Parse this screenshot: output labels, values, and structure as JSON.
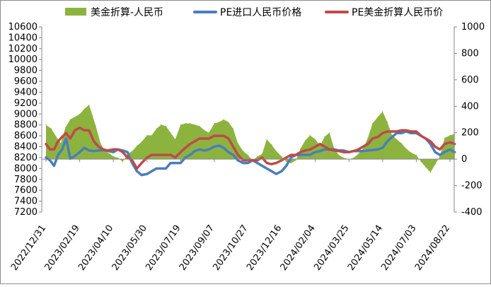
{
  "chart_data": {
    "type": "area+line",
    "title": "",
    "xlabel": "",
    "ylabel": "",
    "ylim_left": [
      7200,
      10600
    ],
    "ylim_right": [
      -400,
      1000
    ],
    "left_ticks": [
      "10600",
      "10400",
      "10200",
      "10000",
      "9800",
      "9600",
      "9400",
      "9200",
      "9000",
      "8800",
      "8600",
      "8400",
      "8200",
      "8000",
      "7800",
      "7600",
      "7400",
      "7200"
    ],
    "right_ticks": [
      "1000",
      "800",
      "600",
      "400",
      "200",
      "0",
      "-200",
      "-400"
    ],
    "x_ticks": [
      "2022/12/31",
      "2023/02/19",
      "2023/04/10",
      "2023/05/30",
      "2023/07/19",
      "2023/09/07",
      "2023/10/27",
      "2023/12/16",
      "2024/02/04",
      "2024/03/25",
      "2024/05/14",
      "2024/07/03",
      "2024/08/22"
    ],
    "legend_position": "top",
    "grid": false,
    "series": [
      {
        "name": "美金折算-人民币",
        "kind": "area",
        "axis": "right",
        "color": "#8DB33F",
        "points": [
          [
            "2022/12/31",
            260
          ],
          [
            "2023/01/08",
            230
          ],
          [
            "2023/01/15",
            170
          ],
          [
            "2023/01/22",
            120
          ],
          [
            "2023/01/29",
            240
          ],
          [
            "2023/02/05",
            300
          ],
          [
            "2023/02/12",
            320
          ],
          [
            "2023/02/19",
            340
          ],
          [
            "2023/02/26",
            380
          ],
          [
            "2023/03/05",
            410
          ],
          [
            "2023/03/10",
            330
          ],
          [
            "2023/03/15",
            250
          ],
          [
            "2023/03/22",
            120
          ],
          [
            "2023/03/29",
            60
          ],
          [
            "2023/04/05",
            40
          ],
          [
            "2023/04/10",
            20
          ],
          [
            "2023/04/17",
            10
          ],
          [
            "2023/04/24",
            -20
          ],
          [
            "2023/05/01",
            40
          ],
          [
            "2023/05/08",
            60
          ],
          [
            "2023/05/15",
            100
          ],
          [
            "2023/05/22",
            130
          ],
          [
            "2023/05/30",
            180
          ],
          [
            "2023/06/06",
            180
          ],
          [
            "2023/06/13",
            230
          ],
          [
            "2023/06/20",
            260
          ],
          [
            "2023/06/27",
            250
          ],
          [
            "2023/07/04",
            200
          ],
          [
            "2023/07/11",
            150
          ],
          [
            "2023/07/19",
            260
          ],
          [
            "2023/07/26",
            270
          ],
          [
            "2023/08/02",
            270
          ],
          [
            "2023/08/09",
            260
          ],
          [
            "2023/08/16",
            250
          ],
          [
            "2023/08/23",
            220
          ],
          [
            "2023/08/30",
            200
          ],
          [
            "2023/09/07",
            270
          ],
          [
            "2023/09/14",
            280
          ],
          [
            "2023/09/21",
            300
          ],
          [
            "2023/09/28",
            280
          ],
          [
            "2023/10/05",
            230
          ],
          [
            "2023/10/12",
            120
          ],
          [
            "2023/10/20",
            60
          ],
          [
            "2023/10/27",
            30
          ],
          [
            "2023/11/03",
            -10
          ],
          [
            "2023/11/10",
            20
          ],
          [
            "2023/11/17",
            40
          ],
          [
            "2023/11/24",
            150
          ],
          [
            "2023/12/01",
            110
          ],
          [
            "2023/12/08",
            60
          ],
          [
            "2023/12/16",
            20
          ],
          [
            "2023/12/23",
            -20
          ],
          [
            "2023/12/30",
            -30
          ],
          [
            "2024/01/06",
            -10
          ],
          [
            "2024/01/13",
            80
          ],
          [
            "2024/01/20",
            140
          ],
          [
            "2024/01/27",
            180
          ],
          [
            "2024/02/04",
            150
          ],
          [
            "2024/02/11",
            100
          ],
          [
            "2024/02/18",
            170
          ],
          [
            "2024/02/25",
            200
          ],
          [
            "2024/03/03",
            80
          ],
          [
            "2024/03/10",
            30
          ],
          [
            "2024/03/17",
            10
          ],
          [
            "2024/03/25",
            0
          ],
          [
            "2024/04/01",
            10
          ],
          [
            "2024/04/08",
            40
          ],
          [
            "2024/04/15",
            80
          ],
          [
            "2024/04/22",
            160
          ],
          [
            "2024/04/29",
            270
          ],
          [
            "2024/05/07",
            320
          ],
          [
            "2024/05/14",
            360
          ],
          [
            "2024/05/21",
            280
          ],
          [
            "2024/05/28",
            180
          ],
          [
            "2024/06/04",
            150
          ],
          [
            "2024/06/11",
            120
          ],
          [
            "2024/06/18",
            80
          ],
          [
            "2024/06/25",
            50
          ],
          [
            "2024/07/03",
            30
          ],
          [
            "2024/07/10",
            -20
          ],
          [
            "2024/07/17",
            -60
          ],
          [
            "2024/07/24",
            -100
          ],
          [
            "2024/07/31",
            -40
          ],
          [
            "2024/08/07",
            20
          ],
          [
            "2024/08/14",
            160
          ],
          [
            "2024/08/22",
            180
          ],
          [
            "2024/08/29",
            190
          ]
        ]
      },
      {
        "name": "PE进口人民币价格",
        "kind": "line",
        "axis": "left",
        "color": "#4A7EBB",
        "points": [
          [
            "2022/12/31",
            8200
          ],
          [
            "2023/01/06",
            8150
          ],
          [
            "2023/01/12",
            8050
          ],
          [
            "2023/01/18",
            8250
          ],
          [
            "2023/01/24",
            8350
          ],
          [
            "2023/01/30",
            8550
          ],
          [
            "2023/02/05",
            8180
          ],
          [
            "2023/02/12",
            8230
          ],
          [
            "2023/02/19",
            8300
          ],
          [
            "2023/02/26",
            8380
          ],
          [
            "2023/03/05",
            8330
          ],
          [
            "2023/03/12",
            8320
          ],
          [
            "2023/03/19",
            8330
          ],
          [
            "2023/03/26",
            8340
          ],
          [
            "2023/04/02",
            8320
          ],
          [
            "2023/04/10",
            8300
          ],
          [
            "2023/04/17",
            8350
          ],
          [
            "2023/04/24",
            8330
          ],
          [
            "2023/05/01",
            8300
          ],
          [
            "2023/05/08",
            8100
          ],
          [
            "2023/05/15",
            7950
          ],
          [
            "2023/05/22",
            7880
          ],
          [
            "2023/05/30",
            7900
          ],
          [
            "2023/06/06",
            7950
          ],
          [
            "2023/06/13",
            8000
          ],
          [
            "2023/06/20",
            8000
          ],
          [
            "2023/06/27",
            8000
          ],
          [
            "2023/07/04",
            8100
          ],
          [
            "2023/07/11",
            8100
          ],
          [
            "2023/07/19",
            8100
          ],
          [
            "2023/07/26",
            8200
          ],
          [
            "2023/08/02",
            8250
          ],
          [
            "2023/08/09",
            8320
          ],
          [
            "2023/08/16",
            8350
          ],
          [
            "2023/08/23",
            8330
          ],
          [
            "2023/08/30",
            8350
          ],
          [
            "2023/09/07",
            8400
          ],
          [
            "2023/09/14",
            8420
          ],
          [
            "2023/09/21",
            8380
          ],
          [
            "2023/09/28",
            8300
          ],
          [
            "2023/10/05",
            8250
          ],
          [
            "2023/10/12",
            8150
          ],
          [
            "2023/10/20",
            8100
          ],
          [
            "2023/10/27",
            8100
          ],
          [
            "2023/11/03",
            8150
          ],
          [
            "2023/11/10",
            8100
          ],
          [
            "2023/11/17",
            8050
          ],
          [
            "2023/11/24",
            8000
          ],
          [
            "2023/12/01",
            7950
          ],
          [
            "2023/12/08",
            7900
          ],
          [
            "2023/12/16",
            7950
          ],
          [
            "2023/12/23",
            8050
          ],
          [
            "2023/12/30",
            8200
          ],
          [
            "2024/01/06",
            8250
          ],
          [
            "2024/01/13",
            8250
          ],
          [
            "2024/01/20",
            8250
          ],
          [
            "2024/01/27",
            8250
          ],
          [
            "2024/02/04",
            8300
          ],
          [
            "2024/02/11",
            8320
          ],
          [
            "2024/02/18",
            8350
          ],
          [
            "2024/02/25",
            8350
          ],
          [
            "2024/03/03",
            8350
          ],
          [
            "2024/03/10",
            8330
          ],
          [
            "2024/03/17",
            8330
          ],
          [
            "2024/03/25",
            8300
          ],
          [
            "2024/04/01",
            8320
          ],
          [
            "2024/04/08",
            8320
          ],
          [
            "2024/04/15",
            8320
          ],
          [
            "2024/04/22",
            8330
          ],
          [
            "2024/04/29",
            8340
          ],
          [
            "2024/05/07",
            8350
          ],
          [
            "2024/05/14",
            8380
          ],
          [
            "2024/05/21",
            8500
          ],
          [
            "2024/05/28",
            8580
          ],
          [
            "2024/06/04",
            8650
          ],
          [
            "2024/06/11",
            8650
          ],
          [
            "2024/06/18",
            8680
          ],
          [
            "2024/06/25",
            8650
          ],
          [
            "2024/07/03",
            8650
          ],
          [
            "2024/07/10",
            8600
          ],
          [
            "2024/07/17",
            8550
          ],
          [
            "2024/07/24",
            8450
          ],
          [
            "2024/07/31",
            8300
          ],
          [
            "2024/08/07",
            8250
          ],
          [
            "2024/08/14",
            8300
          ],
          [
            "2024/08/22",
            8350
          ],
          [
            "2024/08/29",
            8300
          ]
        ]
      },
      {
        "name": "PE美金折算人民币价",
        "kind": "line",
        "axis": "left",
        "color": "#BE4B48",
        "points": [
          [
            "2022/12/31",
            8450
          ],
          [
            "2023/01/06",
            8350
          ],
          [
            "2023/01/12",
            8350
          ],
          [
            "2023/01/18",
            8500
          ],
          [
            "2023/01/24",
            8580
          ],
          [
            "2023/01/30",
            8650
          ],
          [
            "2023/02/05",
            8550
          ],
          [
            "2023/02/12",
            8700
          ],
          [
            "2023/02/19",
            8750
          ],
          [
            "2023/02/26",
            8700
          ],
          [
            "2023/03/05",
            8700
          ],
          [
            "2023/03/12",
            8500
          ],
          [
            "2023/03/19",
            8400
          ],
          [
            "2023/03/26",
            8350
          ],
          [
            "2023/04/02",
            8330
          ],
          [
            "2023/04/10",
            8350
          ],
          [
            "2023/04/17",
            8350
          ],
          [
            "2023/04/24",
            8300
          ],
          [
            "2023/05/01",
            8200
          ],
          [
            "2023/05/08",
            8150
          ],
          [
            "2023/05/15",
            8000
          ],
          [
            "2023/05/22",
            8100
          ],
          [
            "2023/05/30",
            8200
          ],
          [
            "2023/06/06",
            8250
          ],
          [
            "2023/06/13",
            8250
          ],
          [
            "2023/06/20",
            8250
          ],
          [
            "2023/06/27",
            8250
          ],
          [
            "2023/07/04",
            8250
          ],
          [
            "2023/07/11",
            8200
          ],
          [
            "2023/07/19",
            8300
          ],
          [
            "2023/07/26",
            8380
          ],
          [
            "2023/08/02",
            8450
          ],
          [
            "2023/08/09",
            8500
          ],
          [
            "2023/08/16",
            8550
          ],
          [
            "2023/08/23",
            8550
          ],
          [
            "2023/08/30",
            8550
          ],
          [
            "2023/09/07",
            8600
          ],
          [
            "2023/09/14",
            8600
          ],
          [
            "2023/09/21",
            8600
          ],
          [
            "2023/09/28",
            8550
          ],
          [
            "2023/10/05",
            8400
          ],
          [
            "2023/10/12",
            8250
          ],
          [
            "2023/10/20",
            8150
          ],
          [
            "2023/10/27",
            8150
          ],
          [
            "2023/11/03",
            8150
          ],
          [
            "2023/11/10",
            8150
          ],
          [
            "2023/11/17",
            8200
          ],
          [
            "2023/11/24",
            8100
          ],
          [
            "2023/12/01",
            8080
          ],
          [
            "2023/12/08",
            8100
          ],
          [
            "2023/12/16",
            8150
          ],
          [
            "2023/12/23",
            8200
          ],
          [
            "2023/12/30",
            8250
          ],
          [
            "2024/01/06",
            8250
          ],
          [
            "2024/01/13",
            8300
          ],
          [
            "2024/01/20",
            8330
          ],
          [
            "2024/01/27",
            8350
          ],
          [
            "2024/02/04",
            8400
          ],
          [
            "2024/02/11",
            8450
          ],
          [
            "2024/02/18",
            8400
          ],
          [
            "2024/02/25",
            8350
          ],
          [
            "2024/03/03",
            8330
          ],
          [
            "2024/03/10",
            8320
          ],
          [
            "2024/03/17",
            8300
          ],
          [
            "2024/03/25",
            8300
          ],
          [
            "2024/04/01",
            8320
          ],
          [
            "2024/04/08",
            8350
          ],
          [
            "2024/04/15",
            8400
          ],
          [
            "2024/04/22",
            8450
          ],
          [
            "2024/04/29",
            8550
          ],
          [
            "2024/05/07",
            8580
          ],
          [
            "2024/05/14",
            8650
          ],
          [
            "2024/05/21",
            8680
          ],
          [
            "2024/05/28",
            8680
          ],
          [
            "2024/06/04",
            8680
          ],
          [
            "2024/06/11",
            8700
          ],
          [
            "2024/06/18",
            8700
          ],
          [
            "2024/06/25",
            8680
          ],
          [
            "2024/07/03",
            8680
          ],
          [
            "2024/07/10",
            8600
          ],
          [
            "2024/07/17",
            8550
          ],
          [
            "2024/07/24",
            8500
          ],
          [
            "2024/07/31",
            8400
          ],
          [
            "2024/08/07",
            8350
          ],
          [
            "2024/08/14",
            8450
          ],
          [
            "2024/08/22",
            8480
          ],
          [
            "2024/08/29",
            8450
          ]
        ]
      }
    ]
  }
}
